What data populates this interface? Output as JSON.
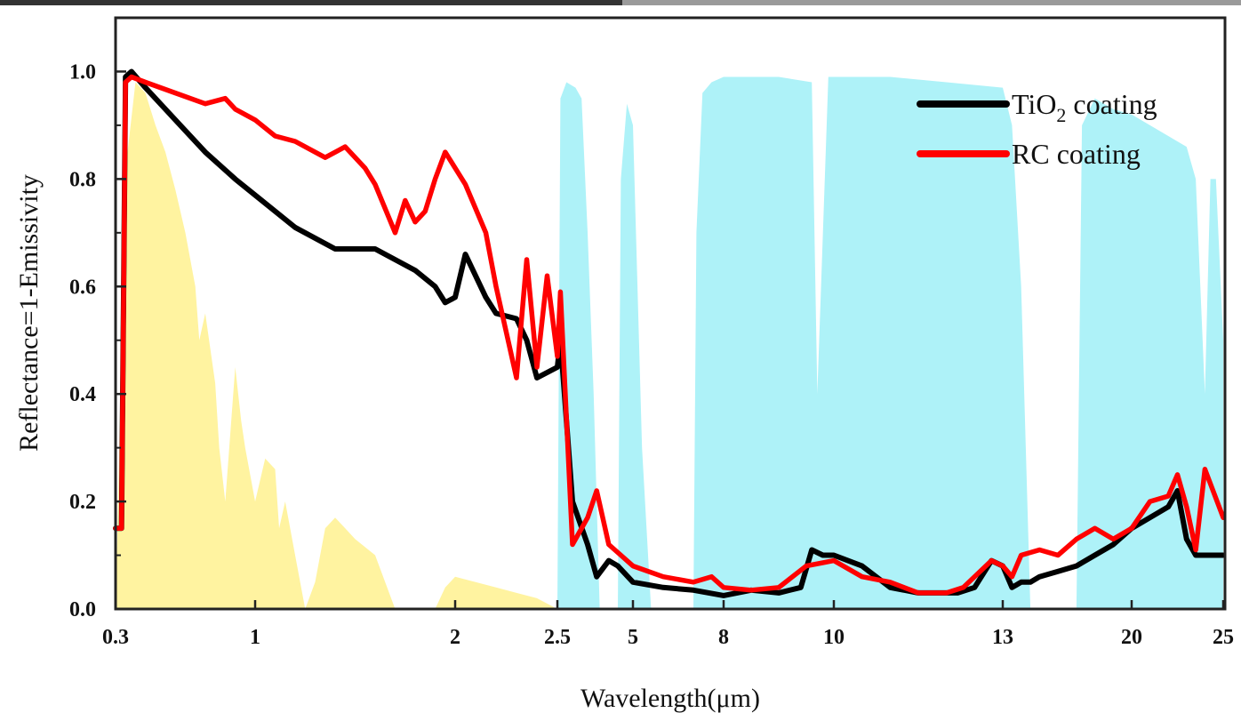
{
  "chart_data": {
    "type": "line",
    "xlabel": "Wavelength(μm)",
    "ylabel": "Reflectance=1-Emissivity",
    "ylim": [
      0,
      1.1
    ],
    "y_ticks": [
      "0.0",
      "0.2",
      "0.4",
      "0.6",
      "0.8",
      "1.0"
    ],
    "x_ticks": [
      "0.3",
      "1",
      "2",
      "2.5",
      "5",
      "8",
      "10",
      "13",
      "20",
      "25"
    ],
    "x_axis_note": "piecewise scale",
    "legend_position": "top-right",
    "grid": false,
    "colors": {
      "tio2": "#000000",
      "rc": "#ff0000",
      "solar": "#fff3a0",
      "atmosphere": "#aef2f8"
    },
    "series": [
      {
        "name": "TiO",
        "name_sub": "2",
        "name_suffix": " coating",
        "color": "#000000",
        "x": [
          0.3,
          0.33,
          0.35,
          0.38,
          0.45,
          0.6,
          0.75,
          0.9,
          1.0,
          1.2,
          1.4,
          1.6,
          1.8,
          1.9,
          1.95,
          2.0,
          2.05,
          2.15,
          2.2,
          2.3,
          2.35,
          2.4,
          2.5,
          2.6,
          3.0,
          3.5,
          3.8,
          4.2,
          4.5,
          5.0,
          6.0,
          7.0,
          8.0,
          8.5,
          9.0,
          9.4,
          9.6,
          9.8,
          10.0,
          10.5,
          11.0,
          11.5,
          12.0,
          12.2,
          12.5,
          12.8,
          13.0,
          13.5,
          14.0,
          14.5,
          15.0,
          16.0,
          17.0,
          18.0,
          19.0,
          20.0,
          21.0,
          22.0,
          22.5,
          23.0,
          23.5,
          24.0,
          25.0
        ],
        "y": [
          0.15,
          0.15,
          0.99,
          1.0,
          0.97,
          0.91,
          0.85,
          0.8,
          0.77,
          0.71,
          0.67,
          0.67,
          0.63,
          0.6,
          0.57,
          0.58,
          0.66,
          0.58,
          0.55,
          0.54,
          0.5,
          0.43,
          0.45,
          0.5,
          0.2,
          0.12,
          0.06,
          0.09,
          0.08,
          0.05,
          0.04,
          0.035,
          0.025,
          0.035,
          0.03,
          0.04,
          0.11,
          0.1,
          0.1,
          0.08,
          0.04,
          0.03,
          0.03,
          0.03,
          0.04,
          0.09,
          0.08,
          0.04,
          0.05,
          0.05,
          0.06,
          0.07,
          0.08,
          0.1,
          0.12,
          0.15,
          0.17,
          0.19,
          0.22,
          0.13,
          0.1,
          0.1,
          0.1
        ]
      },
      {
        "name": "RC coating",
        "color": "#ff0000",
        "x": [
          0.3,
          0.33,
          0.35,
          0.38,
          0.45,
          0.6,
          0.75,
          0.85,
          0.9,
          1.0,
          1.1,
          1.2,
          1.35,
          1.45,
          1.55,
          1.6,
          1.7,
          1.75,
          1.8,
          1.85,
          1.9,
          1.95,
          2.05,
          2.15,
          2.2,
          2.3,
          2.35,
          2.4,
          2.45,
          2.5,
          2.6,
          3.0,
          3.5,
          3.8,
          4.0,
          4.2,
          4.6,
          5.0,
          6.0,
          7.0,
          7.6,
          8.0,
          8.5,
          9.0,
          9.5,
          10.0,
          10.5,
          11.0,
          11.5,
          12.0,
          12.3,
          12.8,
          13.0,
          13.5,
          14.0,
          15.0,
          16.0,
          17.0,
          18.0,
          19.0,
          20.0,
          21.0,
          22.0,
          22.5,
          23.0,
          23.5,
          24.0,
          25.0
        ],
        "y": [
          0.15,
          0.15,
          0.98,
          0.99,
          0.98,
          0.96,
          0.94,
          0.95,
          0.93,
          0.91,
          0.88,
          0.87,
          0.84,
          0.86,
          0.82,
          0.79,
          0.7,
          0.76,
          0.72,
          0.74,
          0.8,
          0.85,
          0.79,
          0.7,
          0.6,
          0.43,
          0.65,
          0.45,
          0.62,
          0.47,
          0.59,
          0.12,
          0.17,
          0.22,
          0.17,
          0.12,
          0.1,
          0.08,
          0.06,
          0.05,
          0.06,
          0.04,
          0.035,
          0.04,
          0.08,
          0.09,
          0.06,
          0.05,
          0.03,
          0.03,
          0.04,
          0.09,
          0.08,
          0.06,
          0.1,
          0.11,
          0.1,
          0.13,
          0.15,
          0.13,
          0.15,
          0.2,
          0.21,
          0.25,
          0.19,
          0.11,
          0.26,
          0.17
        ]
      }
    ],
    "bands": {
      "solar": {
        "x": [
          0.3,
          0.31,
          0.33,
          0.36,
          0.4,
          0.45,
          0.5,
          0.55,
          0.6,
          0.65,
          0.7,
          0.72,
          0.75,
          0.8,
          0.82,
          0.85,
          0.9,
          0.93,
          0.95,
          1.0,
          1.05,
          1.1,
          1.12,
          1.15,
          1.2,
          1.25,
          1.3,
          1.35,
          1.4,
          1.45,
          1.5,
          1.6,
          1.7,
          1.75,
          1.8,
          1.85,
          1.9,
          1.95,
          2.0,
          2.1,
          2.2,
          2.3,
          2.4,
          2.5
        ],
        "y": [
          0.0,
          0.15,
          0.5,
          0.85,
          0.98,
          0.96,
          0.9,
          0.85,
          0.78,
          0.7,
          0.6,
          0.5,
          0.55,
          0.42,
          0.3,
          0.2,
          0.45,
          0.35,
          0.3,
          0.2,
          0.28,
          0.26,
          0.15,
          0.2,
          0.1,
          0.0,
          0.05,
          0.15,
          0.17,
          0.15,
          0.13,
          0.1,
          0.0,
          0.0,
          0.0,
          0.0,
          0.0,
          0.04,
          0.06,
          0.05,
          0.04,
          0.03,
          0.02,
          0.0
        ]
      },
      "atmosphere": {
        "x": [
          2.5,
          2.6,
          2.8,
          3.1,
          3.3,
          3.5,
          3.7,
          3.9,
          4.2,
          4.5,
          4.6,
          4.8,
          5.0,
          5.3,
          5.6,
          5.8,
          6.0,
          7.0,
          7.1,
          7.3,
          7.6,
          8.0,
          8.5,
          9.0,
          9.6,
          9.7,
          9.9,
          10.0,
          11.0,
          12.0,
          13.0,
          13.5,
          14.0,
          14.5,
          15.0,
          15.3,
          15.6,
          16.0,
          17.0,
          18.0,
          19.0,
          20.0,
          21.0,
          22.0,
          23.0,
          24.0,
          24.3,
          24.6,
          25.0
        ],
        "y": [
          0.0,
          0.95,
          0.98,
          0.97,
          0.95,
          0.7,
          0.4,
          0.0,
          0.0,
          0.0,
          0.8,
          0.94,
          0.9,
          0.3,
          0.0,
          0.0,
          0.0,
          0.0,
          0.7,
          0.96,
          0.98,
          0.99,
          0.99,
          0.99,
          0.98,
          0.4,
          0.99,
          0.99,
          0.99,
          0.98,
          0.97,
          0.9,
          0.6,
          0.0,
          0.0,
          0.0,
          0.0,
          0.0,
          0.0,
          0.0,
          0.0,
          0.0,
          0.0,
          0.0,
          0.0,
          0.0,
          0.0,
          0.0,
          0.0
        ],
        "x2": [
          17.0,
          17.3,
          18.0,
          19.0,
          20.0,
          21.0,
          22.0,
          23.0,
          23.5,
          24.0,
          24.3,
          24.6,
          25.0
        ],
        "y2": [
          0.0,
          0.9,
          0.95,
          0.93,
          0.92,
          0.9,
          0.88,
          0.86,
          0.8,
          0.4,
          0.8,
          0.8,
          0.5
        ]
      }
    }
  }
}
